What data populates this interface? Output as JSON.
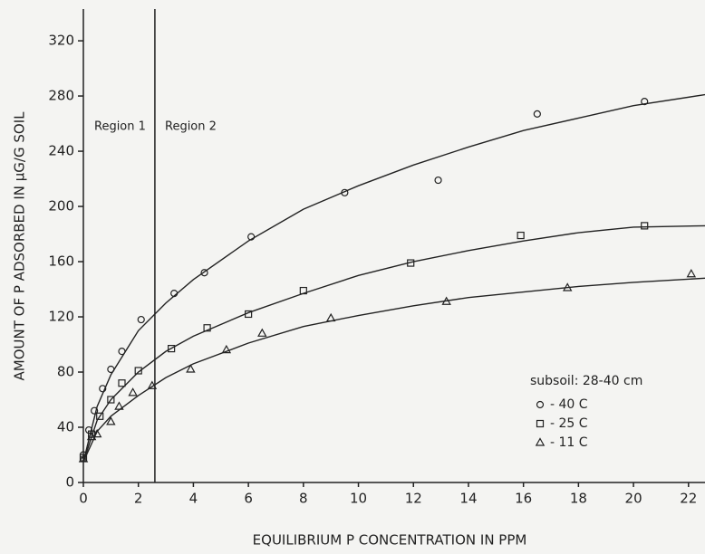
{
  "chart_data": {
    "type": "scatter",
    "xlabel": "EQUILIBRIUM P CONCENTRATION IN PPM",
    "ylabel": "AMOUNT OF P ADSORBED IN μG/G SOIL",
    "xlim": [
      0,
      22.6
    ],
    "ylim": [
      0,
      343
    ],
    "xticks": [
      0,
      2,
      4,
      6,
      8,
      10,
      12,
      14,
      16,
      18,
      20,
      22
    ],
    "yticks": [
      0,
      40,
      80,
      120,
      160,
      200,
      240,
      280,
      320
    ],
    "region_line": 2.6,
    "annotations": [
      "Region 1",
      "Region 2"
    ],
    "legend_title": "subsoil: 28-40 cm",
    "legend": "lower right",
    "series": [
      {
        "name": "- 40 C",
        "color": "#222",
        "marker": "circle",
        "x": [
          0,
          0.2,
          0.4,
          0.7,
          1.0,
          1.4,
          2.1,
          3.3,
          4.4,
          6.1,
          9.5,
          12.9,
          16.5,
          20.4
        ],
        "values": [
          20,
          38,
          52,
          68,
          82,
          95,
          118,
          137,
          152,
          178,
          210,
          219,
          267,
          276
        ],
        "curve": {
          "x": [
            0,
            0.5,
            1,
            2,
            3,
            4,
            6,
            8,
            10,
            12,
            14,
            16,
            18,
            20,
            22.6
          ],
          "values": [
            15,
            55,
            78,
            110,
            130,
            147,
            175,
            198,
            215,
            230,
            243,
            255,
            264,
            273,
            281
          ]
        }
      },
      {
        "name": "- 25 C",
        "color": "#222",
        "marker": "square",
        "x": [
          0,
          0.3,
          0.6,
          1.0,
          1.4,
          2.0,
          3.2,
          4.5,
          6.0,
          8.0,
          11.9,
          15.9,
          20.4
        ],
        "values": [
          18,
          35,
          48,
          60,
          72,
          81,
          97,
          112,
          122,
          139,
          159,
          179,
          186
        ],
        "curve": {
          "x": [
            0,
            0.5,
            1,
            2,
            3,
            4,
            6,
            8,
            10,
            12,
            14,
            16,
            18,
            20,
            22.6
          ],
          "values": [
            15,
            45,
            60,
            80,
            95,
            106,
            123,
            137,
            150,
            160,
            168,
            175,
            181,
            185,
            186
          ]
        }
      },
      {
        "name": "- 11 C",
        "color": "#222",
        "marker": "triangle",
        "x": [
          0,
          0.3,
          0.5,
          1.0,
          1.3,
          1.8,
          2.5,
          3.9,
          5.2,
          6.5,
          9.0,
          13.2,
          17.6,
          22.1
        ],
        "values": [
          17,
          33,
          35,
          44,
          55,
          65,
          70,
          82,
          96,
          108,
          119,
          131,
          141,
          151
        ],
        "curve": {
          "x": [
            0,
            0.5,
            1,
            2,
            3,
            4,
            6,
            8,
            10,
            12,
            14,
            16,
            18,
            20,
            22.6
          ],
          "values": [
            15,
            37,
            48,
            63,
            76,
            86,
            101,
            113,
            121,
            128,
            134,
            138,
            142,
            145,
            148
          ]
        }
      }
    ]
  }
}
